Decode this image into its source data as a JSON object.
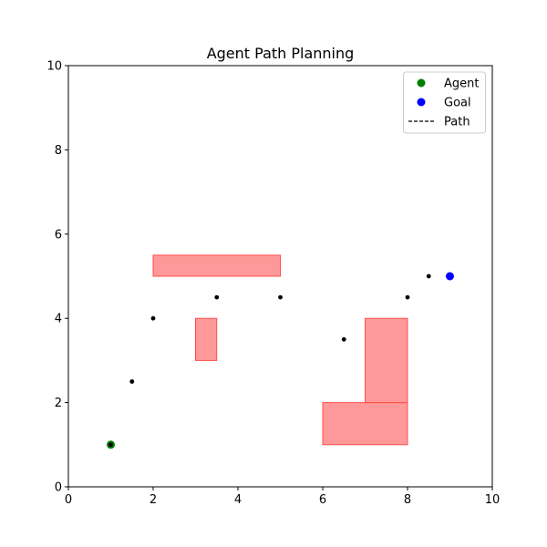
{
  "chart_data": {
    "type": "scatter",
    "title": "Agent Path Planning",
    "xlabel": "",
    "ylabel": "",
    "xlim": [
      0,
      10
    ],
    "ylim": [
      0,
      10
    ],
    "x_ticks": [
      "0",
      "2",
      "4",
      "6",
      "8",
      "10"
    ],
    "y_ticks": [
      "0",
      "2",
      "4",
      "6",
      "8",
      "10"
    ],
    "grid": false,
    "legend_position": "top-right",
    "obstacles": [
      {
        "x": 2,
        "y": 5,
        "width": 3,
        "height": 0.5
      },
      {
        "x": 3,
        "y": 3,
        "width": 0.5,
        "height": 1
      },
      {
        "x": 6,
        "y": 1,
        "width": 2,
        "height": 1
      },
      {
        "x": 7,
        "y": 2,
        "width": 1,
        "height": 2
      }
    ],
    "obstacle_color": "#ff9999",
    "obstacle_edge_color": "#ff4d4d",
    "path": {
      "name": "Path",
      "points": [
        [
          1,
          1
        ],
        [
          1.5,
          2.5
        ],
        [
          2,
          4
        ],
        [
          3.5,
          4.5
        ],
        [
          5,
          4.5
        ],
        [
          6.5,
          3.5
        ],
        [
          8,
          4.5
        ],
        [
          8.5,
          5
        ],
        [
          9,
          5
        ]
      ],
      "color": "#000000"
    },
    "agent": {
      "name": "Agent",
      "x": 1,
      "y": 1,
      "color": "#008000"
    },
    "goal": {
      "name": "Goal",
      "x": 9,
      "y": 5,
      "color": "#0000ff"
    },
    "legend": [
      "Agent",
      "Goal",
      "Path"
    ]
  }
}
